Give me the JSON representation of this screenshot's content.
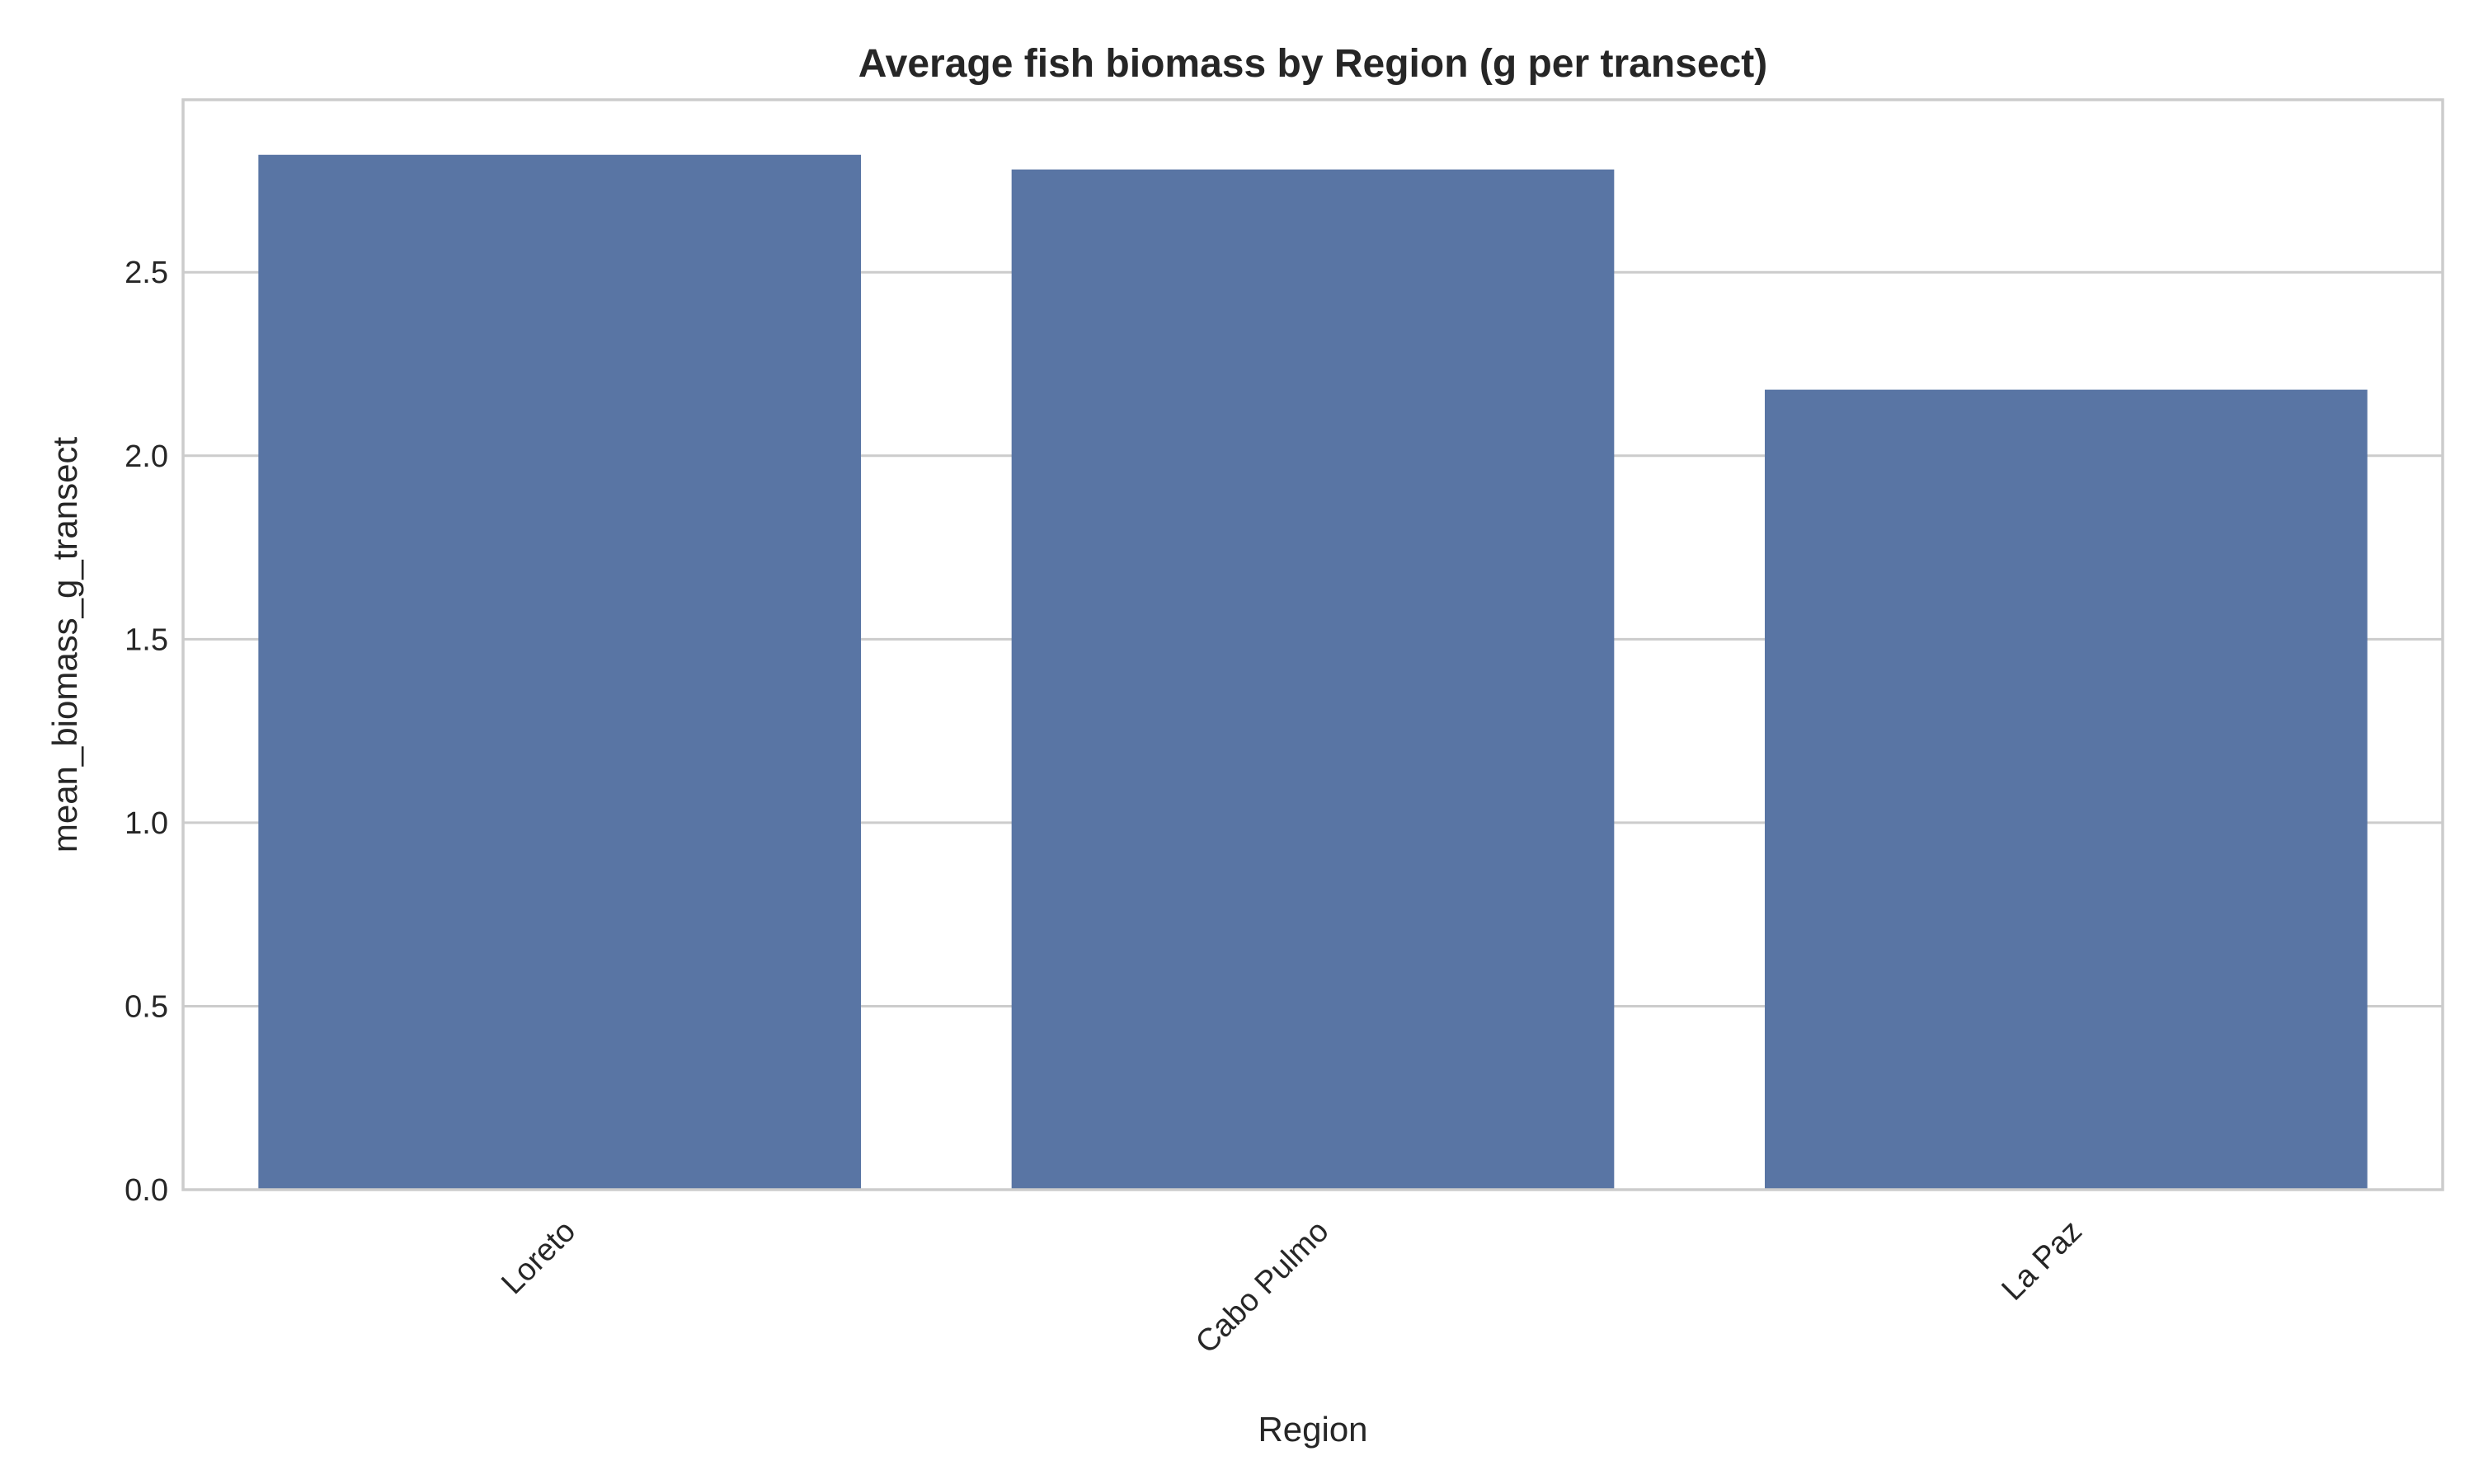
{
  "chart_data": {
    "type": "bar",
    "title": "Average fish biomass by Region (g per transect)",
    "xlabel": "Region",
    "ylabel": "mean_biomass_g_transect",
    "categories": [
      "Loreto",
      "Cabo Pulmo",
      "La Paz"
    ],
    "values": [
      2.82,
      2.78,
      2.18
    ],
    "ylim": [
      0,
      2.97
    ],
    "yticks": [
      0.0,
      0.5,
      1.0,
      1.5,
      2.0,
      2.5
    ],
    "ytick_labels": [
      "0.0",
      "0.5",
      "1.0",
      "1.5",
      "2.0",
      "2.5"
    ],
    "grid": "horizontal",
    "bar_color": "#5975a4",
    "grid_color": "#cccccc",
    "frame_color": "#cccccc",
    "text_color": "#262626"
  }
}
